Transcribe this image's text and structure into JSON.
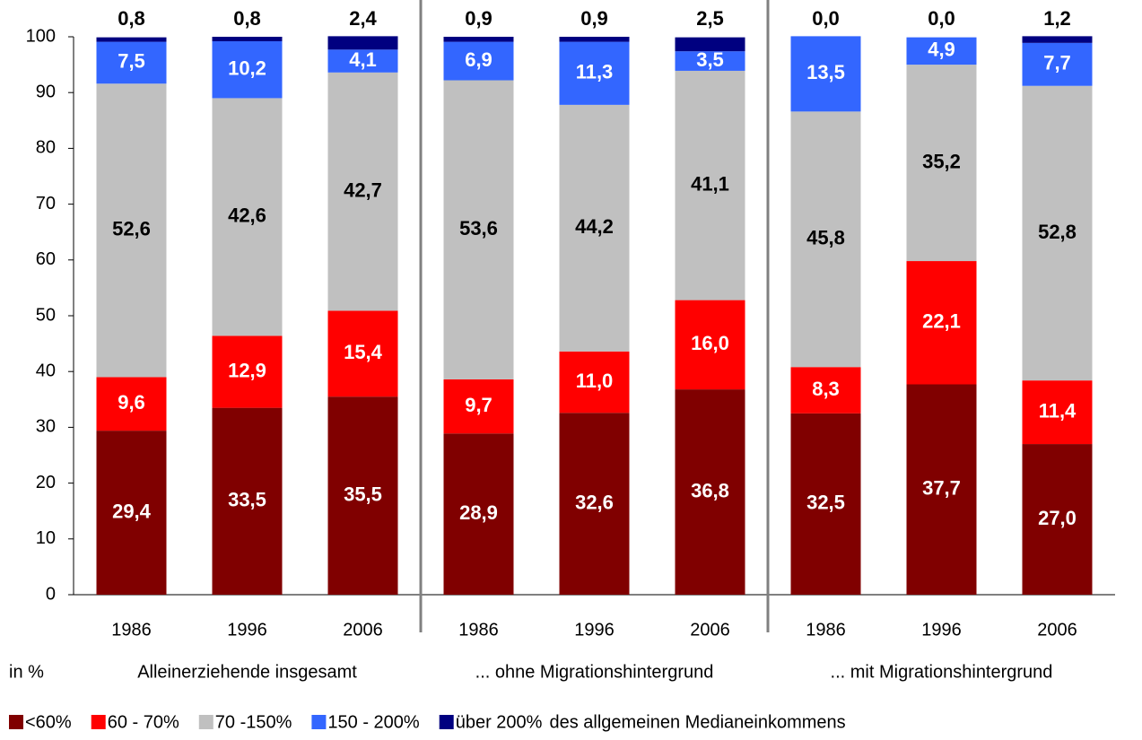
{
  "chart_data": {
    "type": "stacked_bar",
    "categories": [
      "1986",
      "1996",
      "2006",
      "1986",
      "1996",
      "2006",
      "1986",
      "1996",
      "2006"
    ],
    "groups": [
      "Alleinerziehende insgesamt",
      "... ohne Migrationshintergrund",
      "... mit Migrationshintergrund"
    ],
    "unit_label": "in %",
    "legend_note": "des allgemeinen Medianeinkommens",
    "ylim": [
      0,
      100
    ],
    "yticks": [
      0,
      10,
      20,
      30,
      40,
      50,
      60,
      70,
      80,
      90,
      100
    ],
    "series": [
      {
        "name": "<60%",
        "color": "#800000",
        "values": [
          29.4,
          33.5,
          35.5,
          28.9,
          32.6,
          36.8,
          32.5,
          37.7,
          27.0
        ],
        "value_labels": [
          "29,4",
          "33,5",
          "35,5",
          "28,9",
          "32,6",
          "36,8",
          "32,5",
          "37,7",
          "27,0"
        ]
      },
      {
        "name": "60 - 70%",
        "color": "#ff0000",
        "values": [
          9.6,
          12.9,
          15.4,
          9.7,
          11.0,
          16.0,
          8.3,
          22.1,
          11.4
        ],
        "value_labels": [
          "9,6",
          "12,9",
          "15,4",
          "9,7",
          "11,0",
          "16,0",
          "8,3",
          "22,1",
          "11,4"
        ]
      },
      {
        "name": "70 -150%",
        "color": "#c0c0c0",
        "values": [
          52.6,
          42.6,
          42.7,
          53.6,
          44.2,
          41.1,
          45.8,
          35.2,
          52.8
        ],
        "value_labels": [
          "52,6",
          "42,6",
          "42,7",
          "53,6",
          "44,2",
          "41,1",
          "45,8",
          "35,2",
          "52,8"
        ]
      },
      {
        "name": "150 - 200%",
        "color": "#3366ff",
        "values": [
          7.5,
          10.2,
          4.1,
          6.9,
          11.3,
          3.5,
          13.5,
          4.9,
          7.7
        ],
        "value_labels": [
          "7,5",
          "10,2",
          "4,1",
          "6,9",
          "11,3",
          "3,5",
          "13,5",
          "4,9",
          "7,7"
        ]
      },
      {
        "name": "über 200%",
        "color": "#000080",
        "values": [
          0.8,
          0.8,
          2.4,
          0.9,
          0.9,
          2.5,
          0.0,
          0.0,
          1.2
        ],
        "value_labels": [
          "0,8",
          "0,8",
          "2,4",
          "0,9",
          "0,9",
          "2,5",
          "0,0",
          "0,0",
          "1,2"
        ]
      }
    ]
  }
}
